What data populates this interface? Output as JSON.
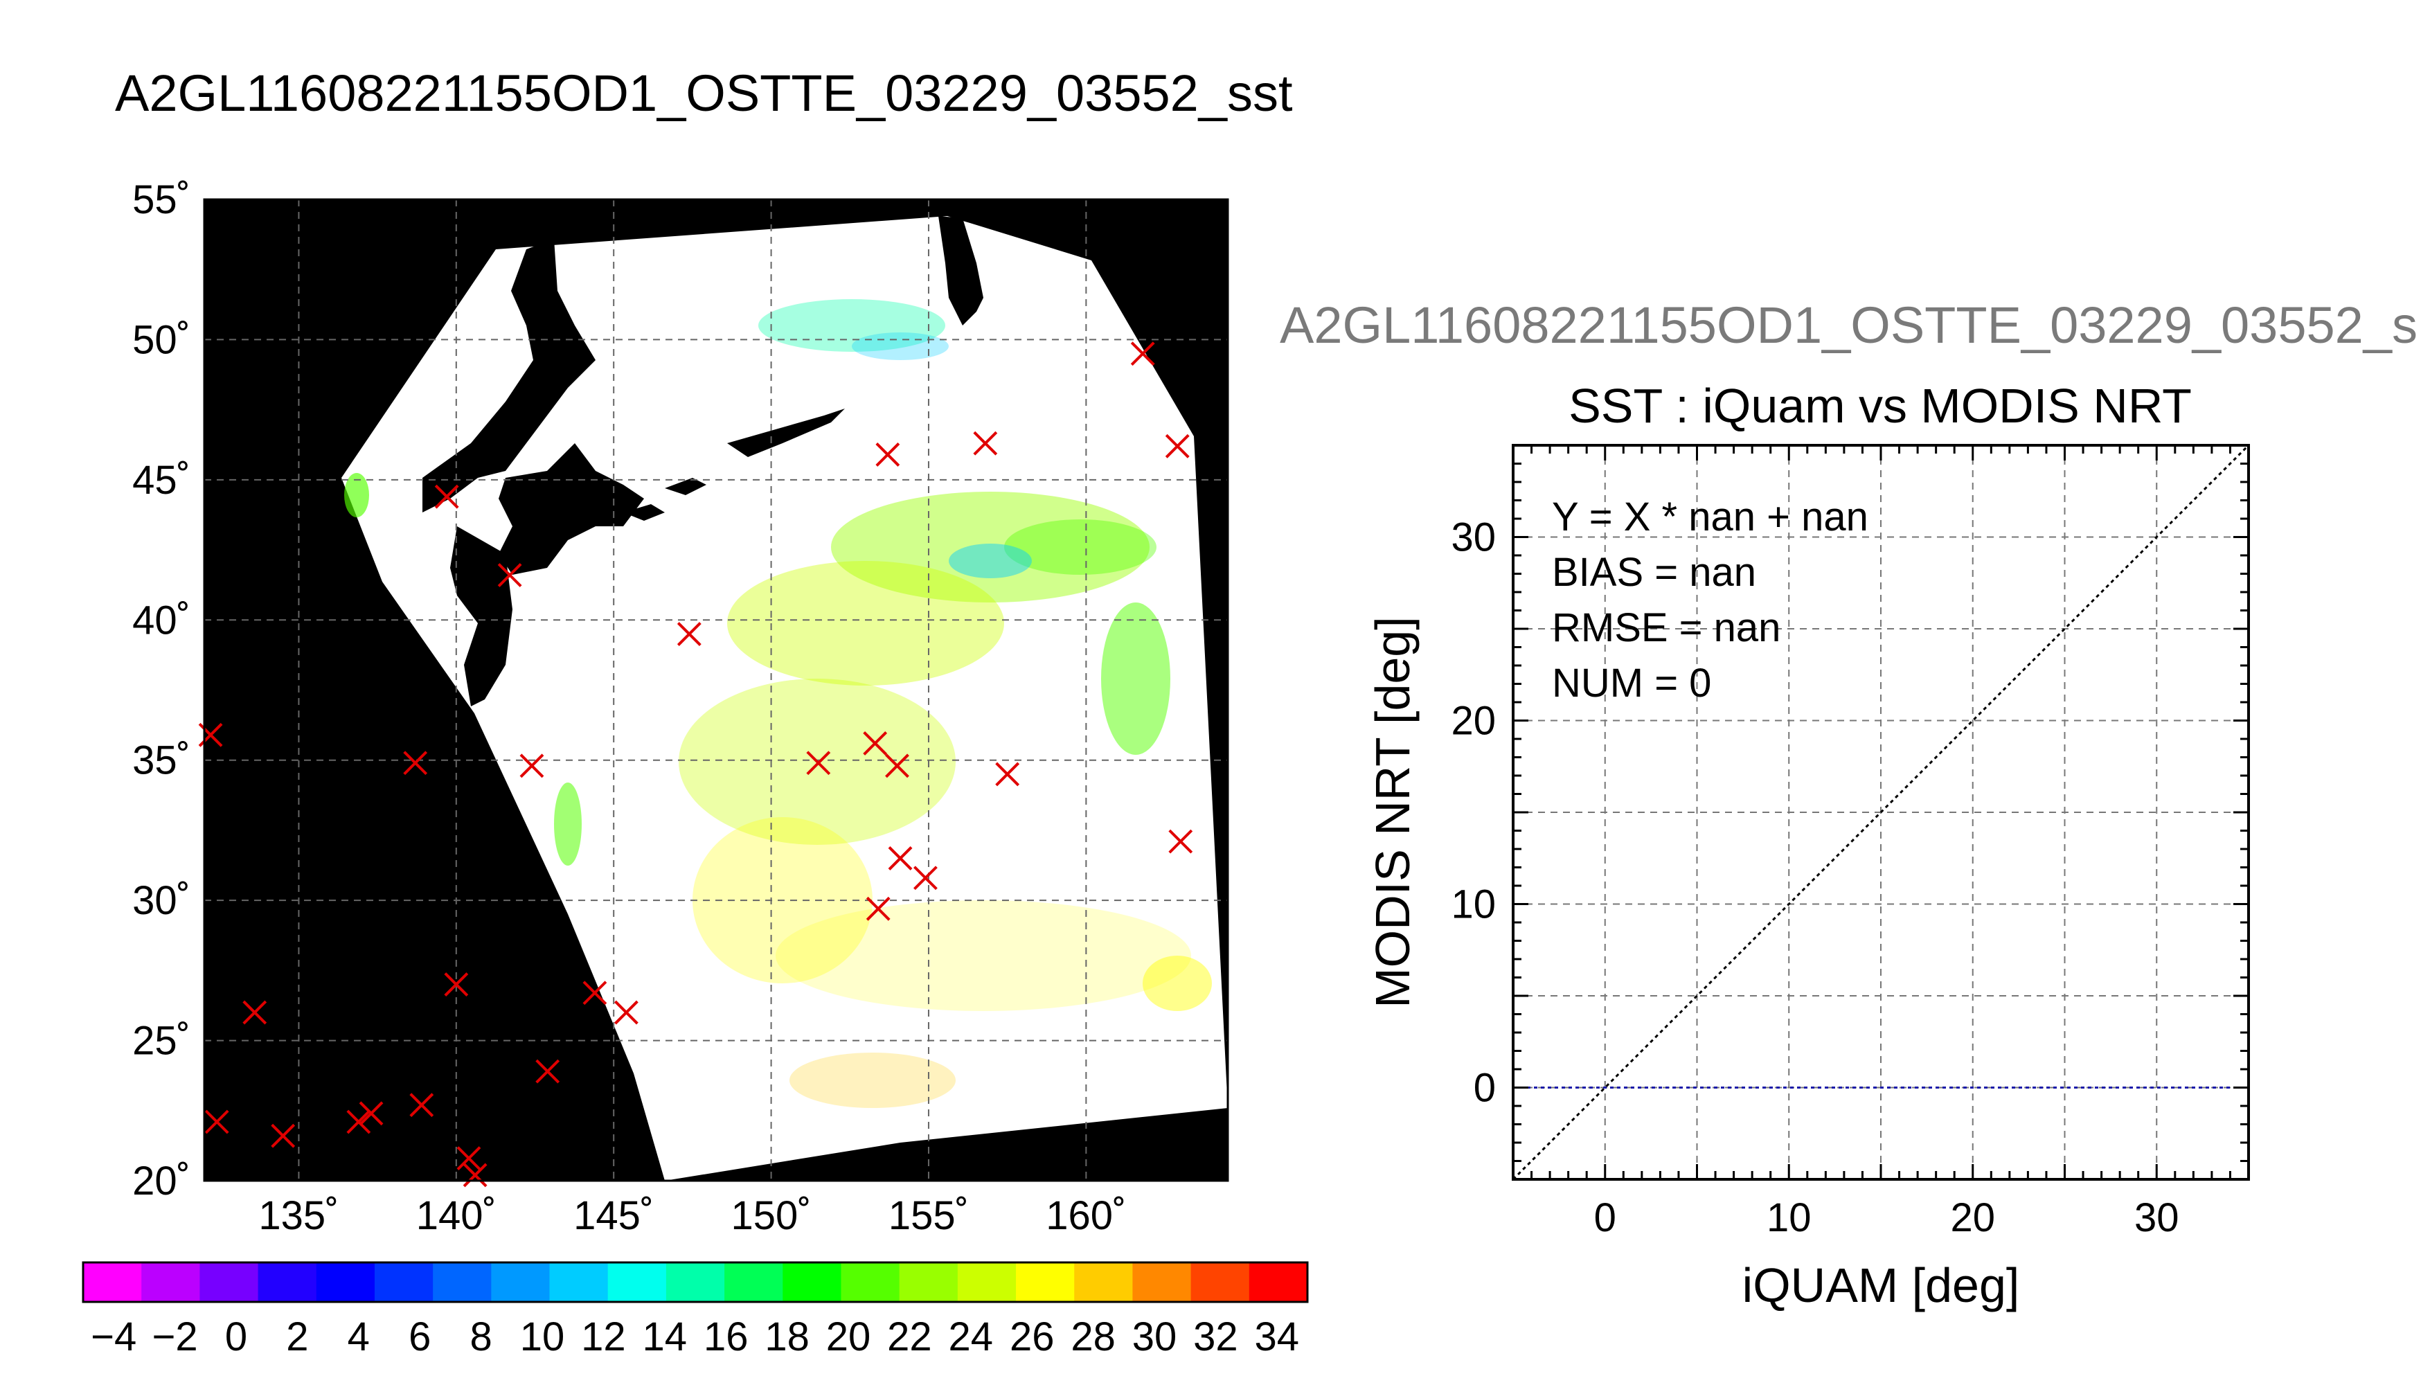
{
  "page": {
    "main_title": "A2GL11608221155OD1_OSTTE_03229_03552_sst",
    "right_title": "A2GL11608221155OD1_OSTTE_03229_03552_s"
  },
  "chart_data": [
    {
      "type": "scatter",
      "title": "A2GL11608221155OD1_OSTTE_03229_03552_sst",
      "subtype": "map",
      "xlabel": "",
      "ylabel": "",
      "xlim": [
        132,
        164.5
      ],
      "ylim": [
        20,
        55
      ],
      "x_ticks": [
        135,
        140,
        145,
        150,
        155,
        160
      ],
      "x_tick_labels": [
        "135˚",
        "140˚",
        "145˚",
        "150˚",
        "155˚",
        "160˚"
      ],
      "y_ticks": [
        20,
        25,
        30,
        35,
        40,
        45,
        50,
        55
      ],
      "y_tick_labels": [
        "20˚",
        "25˚",
        "30˚",
        "35˚",
        "40˚",
        "45˚",
        "50˚",
        "55˚"
      ],
      "grid": true,
      "marker": "x",
      "marker_color": "#e00000",
      "points": [
        [
          132.2,
          35.9
        ],
        [
          133.6,
          26.0
        ],
        [
          132.4,
          22.1
        ],
        [
          134.5,
          21.6
        ],
        [
          136.9,
          22.1
        ],
        [
          137.3,
          22.4
        ],
        [
          138.9,
          22.7
        ],
        [
          140.0,
          27.0
        ],
        [
          140.4,
          20.8
        ],
        [
          140.6,
          20.2
        ],
        [
          138.7,
          34.9
        ],
        [
          139.7,
          44.4
        ],
        [
          141.7,
          41.6
        ],
        [
          142.4,
          34.8
        ],
        [
          142.9,
          23.9
        ],
        [
          144.4,
          26.7
        ],
        [
          145.4,
          26.0
        ],
        [
          147.4,
          39.5
        ],
        [
          151.5,
          34.9
        ],
        [
          153.3,
          35.6
        ],
        [
          154.0,
          34.8
        ],
        [
          154.1,
          31.5
        ],
        [
          154.9,
          30.8
        ],
        [
          153.4,
          29.7
        ],
        [
          153.7,
          45.9
        ],
        [
          156.8,
          46.3
        ],
        [
          157.5,
          34.5
        ],
        [
          161.8,
          49.5
        ],
        [
          162.9,
          46.2
        ],
        [
          163.0,
          32.1
        ]
      ]
    },
    {
      "type": "colorbar",
      "min": -5,
      "max": 35,
      "tick_labels": [
        "−4",
        "−2",
        "0",
        "2",
        "4",
        "6",
        "8",
        "10",
        "12",
        "14",
        "16",
        "18",
        "20",
        "22",
        "24",
        "26",
        "28",
        "30",
        "32",
        "34"
      ],
      "tick_values": [
        -4,
        -2,
        0,
        2,
        4,
        6,
        8,
        10,
        12,
        14,
        16,
        18,
        20,
        22,
        24,
        26,
        28,
        30,
        32,
        34
      ],
      "colors": [
        "#ff00ff",
        "#bb00ff",
        "#7700ff",
        "#2200ff",
        "#0000ff",
        "#0033ff",
        "#0066ff",
        "#0099ff",
        "#00ccff",
        "#00ffee",
        "#00ffaa",
        "#00ff55",
        "#00ff00",
        "#55ff00",
        "#99ff00",
        "#ccff00",
        "#ffff00",
        "#ffcc00",
        "#ff8800",
        "#ff4400",
        "#ff0000"
      ]
    },
    {
      "type": "line",
      "title": "SST : iQuam vs MODIS NRT",
      "xlabel": "iQUAM [deg]",
      "ylabel": "MODIS NRT [deg]",
      "xlim": [
        -5,
        35
      ],
      "ylim": [
        -5,
        35
      ],
      "x_ticks": [
        0,
        10,
        20,
        30
      ],
      "y_ticks": [
        0,
        10,
        20,
        30
      ],
      "grid": true,
      "series": [
        {
          "x": [
            -5,
            35
          ],
          "y": [
            -5,
            35
          ],
          "color": "#000000",
          "style": "dotted"
        },
        {
          "x": [
            -5,
            35
          ],
          "y": [
            0,
            0
          ],
          "color": "#1a1aaa",
          "style": "dotted"
        }
      ],
      "annotations": [
        "Y = X * nan + nan",
        "BIAS = nan",
        "RMSE = nan",
        "NUM = 0"
      ]
    }
  ]
}
